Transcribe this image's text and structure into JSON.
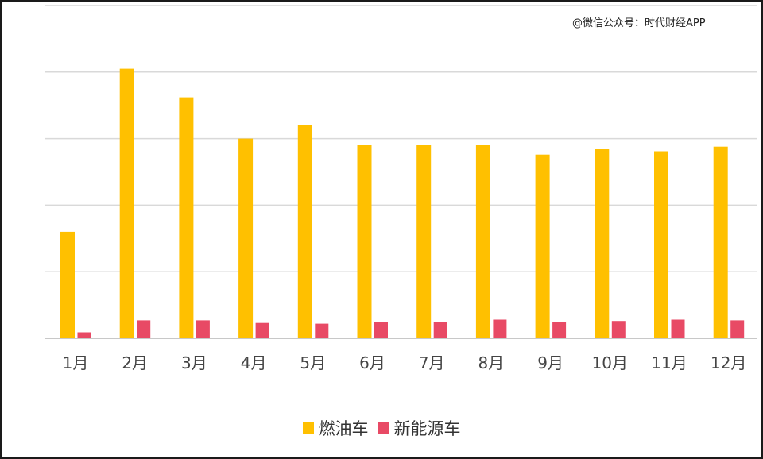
{
  "watermark": "@微信公众号：时代财经APP",
  "chart_data": {
    "type": "bar",
    "categories": [
      "1月",
      "2月",
      "3月",
      "4月",
      "5月",
      "6月",
      "7月",
      "8月",
      "9月",
      "10月",
      "11月",
      "12月"
    ],
    "series": [
      {
        "name": "燃油车",
        "color": "#FFC000",
        "values": [
          1.6,
          4.05,
          3.62,
          3.0,
          3.2,
          2.91,
          2.91,
          2.91,
          2.76,
          2.84,
          2.81,
          2.88
        ]
      },
      {
        "name": "新能源车",
        "color": "#E84A65",
        "values": [
          0.09,
          0.27,
          0.27,
          0.23,
          0.22,
          0.25,
          0.25,
          0.28,
          0.25,
          0.26,
          0.28,
          0.27
        ]
      }
    ],
    "ylim": [
      0,
      5
    ],
    "grid": true,
    "legend_position": "bottom"
  }
}
